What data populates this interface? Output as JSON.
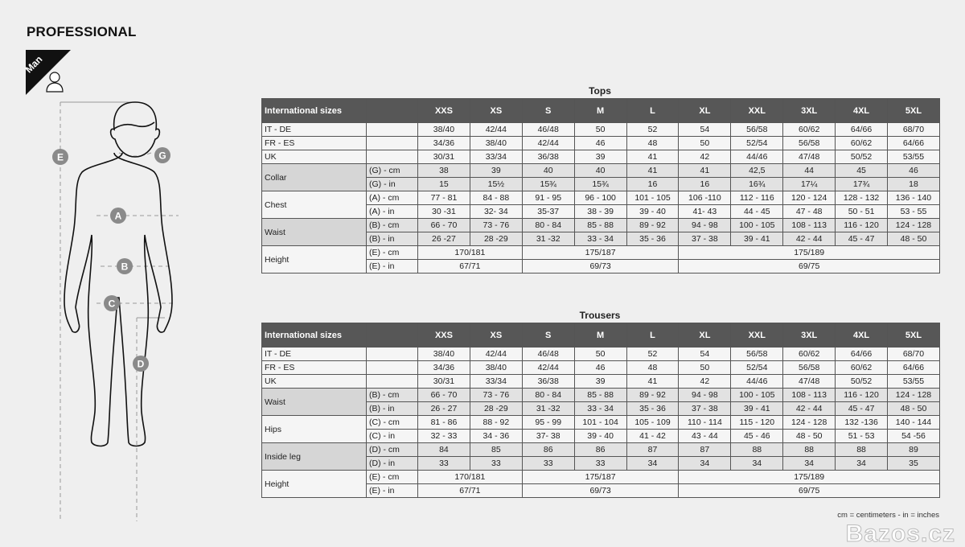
{
  "brand": "PROFESSIONAL",
  "badge": {
    "label": "Man",
    "icon": "person-icon"
  },
  "figure_labels": [
    "A",
    "B",
    "C",
    "D",
    "E",
    "G"
  ],
  "tops": {
    "title": "Tops",
    "header": [
      "International sizes",
      "",
      "XXS",
      "XS",
      "S",
      "M",
      "L",
      "XL",
      "XXL",
      "3XL",
      "4XL",
      "5XL"
    ],
    "groups": [
      {
        "label": "IT - DE",
        "rows": [
          {
            "sub": "",
            "values": [
              "38/40",
              "42/44",
              "46/48",
              "50",
              "52",
              "54",
              "56/58",
              "60/62",
              "64/66",
              "68/70"
            ]
          }
        ]
      },
      {
        "label": "FR - ES",
        "rows": [
          {
            "sub": "",
            "values": [
              "34/36",
              "38/40",
              "42/44",
              "46",
              "48",
              "50",
              "52/54",
              "56/58",
              "60/62",
              "64/66"
            ]
          }
        ]
      },
      {
        "label": "UK",
        "rows": [
          {
            "sub": "",
            "values": [
              "30/31",
              "33/34",
              "36/38",
              "39",
              "41",
              "42",
              "44/46",
              "47/48",
              "50/52",
              "53/55"
            ]
          }
        ]
      },
      {
        "label": "Collar",
        "shade": true,
        "rows": [
          {
            "sub": "(G) - cm",
            "values": [
              "38",
              "39",
              "40",
              "40",
              "41",
              "41",
              "42,5",
              "44",
              "45",
              "46"
            ]
          },
          {
            "sub": "(G) - in",
            "values": [
              "15",
              "15½",
              "15¾",
              "15¾",
              "16",
              "16",
              "16¾",
              "17¼",
              "17¾",
              "18"
            ]
          }
        ]
      },
      {
        "label": "Chest",
        "rows": [
          {
            "sub": "(A) - cm",
            "values": [
              "77 - 81",
              "84 - 88",
              "91 - 95",
              "96 - 100",
              "101 - 105",
              "106 -110",
              "112 - 116",
              "120 - 124",
              "128 - 132",
              "136 - 140"
            ]
          },
          {
            "sub": "(A) - in",
            "values": [
              "30 -31",
              "32- 34",
              "35-37",
              "38 - 39",
              "39 - 40",
              "41- 43",
              "44 - 45",
              "47 - 48",
              "50 - 51",
              "53 - 55"
            ]
          }
        ]
      },
      {
        "label": "Waist",
        "shade": true,
        "rows": [
          {
            "sub": "(B) - cm",
            "values": [
              "66 - 70",
              "73 - 76",
              "80 - 84",
              "85 - 88",
              "89 - 92",
              "94 - 98",
              "100 - 105",
              "108 - 113",
              "116 - 120",
              "124 - 128"
            ]
          },
          {
            "sub": "(B) - in",
            "values": [
              "26 -27",
              "28 -29",
              "31 -32",
              "33 - 34",
              "35 - 36",
              "37 - 38",
              "39 - 41",
              "42 - 44",
              "45 - 47",
              "48 - 50"
            ]
          }
        ]
      },
      {
        "label": "Height",
        "height": true,
        "rows": [
          {
            "sub": "(E) - cm",
            "values": [
              "170/181",
              "175/187",
              "175/189"
            ]
          },
          {
            "sub": "(E) - in",
            "values": [
              "67/71",
              "69/73",
              "69/75"
            ]
          }
        ]
      }
    ]
  },
  "trousers": {
    "title": "Trousers",
    "header": [
      "International sizes",
      "",
      "XXS",
      "XS",
      "S",
      "M",
      "L",
      "XL",
      "XXL",
      "3XL",
      "4XL",
      "5XL"
    ],
    "groups": [
      {
        "label": "IT - DE",
        "rows": [
          {
            "sub": "",
            "values": [
              "38/40",
              "42/44",
              "46/48",
              "50",
              "52",
              "54",
              "56/58",
              "60/62",
              "64/66",
              "68/70"
            ]
          }
        ]
      },
      {
        "label": "FR - ES",
        "rows": [
          {
            "sub": "",
            "values": [
              "34/36",
              "38/40",
              "42/44",
              "46",
              "48",
              "50",
              "52/54",
              "56/58",
              "60/62",
              "64/66"
            ]
          }
        ]
      },
      {
        "label": "UK",
        "rows": [
          {
            "sub": "",
            "values": [
              "30/31",
              "33/34",
              "36/38",
              "39",
              "41",
              "42",
              "44/46",
              "47/48",
              "50/52",
              "53/55"
            ]
          }
        ]
      },
      {
        "label": "Waist",
        "shade": true,
        "rows": [
          {
            "sub": "(B) - cm",
            "values": [
              "66 - 70",
              "73 - 76",
              "80 - 84",
              "85 - 88",
              "89 - 92",
              "94 - 98",
              "100 - 105",
              "108 - 113",
              "116 - 120",
              "124 - 128"
            ]
          },
          {
            "sub": "(B) - in",
            "values": [
              "26 - 27",
              "28 -29",
              "31 -32",
              "33 - 34",
              "35 - 36",
              "37 - 38",
              "39 - 41",
              "42 - 44",
              "45 - 47",
              "48 - 50"
            ]
          }
        ]
      },
      {
        "label": "Hips",
        "rows": [
          {
            "sub": "(C) - cm",
            "values": [
              "81 - 86",
              "88 - 92",
              "95 - 99",
              "101 - 104",
              "105 - 109",
              "110 - 114",
              "115 - 120",
              "124 - 128",
              "132 -136",
              "140 - 144"
            ]
          },
          {
            "sub": "(C) - in",
            "values": [
              "32 - 33",
              "34 - 36",
              "37- 38",
              "39 - 40",
              "41 - 42",
              "43 - 44",
              "45 - 46",
              "48 - 50",
              "51 - 53",
              "54 -56"
            ]
          }
        ]
      },
      {
        "label": "Inside leg",
        "shade": true,
        "rows": [
          {
            "sub": "(D) - cm",
            "values": [
              "84",
              "85",
              "86",
              "86",
              "87",
              "87",
              "88",
              "88",
              "88",
              "89"
            ]
          },
          {
            "sub": "(D) - in",
            "values": [
              "33",
              "33",
              "33",
              "33",
              "34",
              "34",
              "34",
              "34",
              "34",
              "35"
            ]
          }
        ]
      },
      {
        "label": "Height",
        "height": true,
        "rows": [
          {
            "sub": "(E) - cm",
            "values": [
              "170/181",
              "175/187",
              "175/189"
            ]
          },
          {
            "sub": "(E) - in",
            "values": [
              "67/71",
              "69/73",
              "69/75"
            ]
          }
        ]
      }
    ]
  },
  "footnote": "cm = centimeters - in = inches",
  "watermark": "Bazos.cz"
}
